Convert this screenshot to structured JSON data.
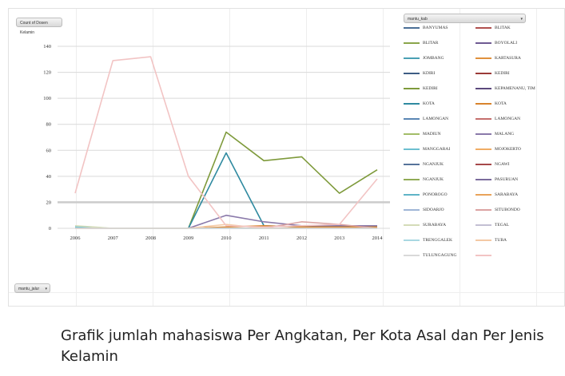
{
  "value_field_label": "Count of Dosen Kelamin",
  "legend_field_label": "mantu_kab",
  "axis_field_label": "mantu_jalur",
  "caption": "Grafik jumlah mahasiswa Per Angkatan, Per Kota Asal dan Per Jenis Kelamin",
  "chart_data": {
    "type": "line",
    "x": [
      "2006",
      "2007",
      "2008",
      "2009",
      "2010",
      "2011",
      "2012",
      "2013",
      "2014"
    ],
    "ylim": [
      0,
      140
    ],
    "yticks": [
      0,
      20,
      40,
      60,
      80,
      100,
      120,
      140
    ],
    "grid": true,
    "legend_position": "right",
    "series": [
      {
        "name": "BANYUMAS",
        "color": "#4a6f96",
        "values": [
          0,
          0,
          0,
          0,
          0,
          0,
          0,
          0,
          0
        ]
      },
      {
        "name": "BLITAK",
        "color": "#b0504e",
        "values": [
          0,
          0,
          0,
          0,
          0,
          0,
          0,
          0,
          0
        ]
      },
      {
        "name": "BLITAR",
        "color": "#8aa54a",
        "values": [
          0,
          0,
          0,
          0,
          0,
          0,
          0,
          0,
          0
        ]
      },
      {
        "name": "BOYOLALI",
        "color": "#6f5a92",
        "values": [
          0,
          0,
          0,
          0,
          0,
          0,
          0,
          0,
          0
        ]
      },
      {
        "name": "JOMBANG",
        "color": "#4aa0b4",
        "values": [
          0,
          0,
          0,
          0,
          0,
          0,
          0,
          0,
          0
        ]
      },
      {
        "name": "KARTASURA",
        "color": "#e0913c",
        "values": [
          0,
          0,
          0,
          0,
          0,
          0,
          0,
          0,
          0
        ]
      },
      {
        "name": "KDIRI",
        "color": "#3d5c84",
        "values": [
          0,
          0,
          0,
          0,
          0,
          0,
          0,
          0,
          0
        ]
      },
      {
        "name": "KEDIRI",
        "color": "#9b3a38",
        "values": [
          0,
          0,
          0,
          0,
          0,
          0,
          0,
          0,
          0
        ]
      },
      {
        "name": "KEDIRI",
        "color": "#7e9a3b",
        "values": [
          0,
          0,
          0,
          0,
          74,
          52,
          55,
          27,
          45
        ]
      },
      {
        "name": "KEPAMENANU, TIM",
        "color": "#5b497c",
        "values": [
          0,
          0,
          0,
          0,
          0,
          0,
          0,
          0,
          0
        ]
      },
      {
        "name": "KOTA",
        "color": "#2f8aa0",
        "values": [
          0,
          0,
          0,
          0,
          58,
          2,
          1,
          1,
          1
        ]
      },
      {
        "name": "KOTA",
        "color": "#d8832c",
        "values": [
          0,
          0,
          0,
          0,
          1,
          2,
          1,
          1,
          1
        ]
      },
      {
        "name": "LAMONGAN",
        "color": "#5a86b4",
        "values": [
          0,
          0,
          0,
          0,
          0,
          0,
          0,
          0,
          0
        ]
      },
      {
        "name": "LAMONGAN",
        "color": "#c56f6d",
        "values": [
          0,
          0,
          0,
          0,
          0,
          0,
          0,
          0,
          0
        ]
      },
      {
        "name": "MADIUN",
        "color": "#a3bd68",
        "values": [
          0,
          0,
          0,
          0,
          0,
          0,
          0,
          0,
          0
        ]
      },
      {
        "name": "MALANG",
        "color": "#8a79aa",
        "values": [
          0,
          0,
          0,
          0,
          10,
          5,
          2,
          2,
          2
        ]
      },
      {
        "name": "MANGGARAI",
        "color": "#6cbfd0",
        "values": [
          1,
          0,
          0,
          0,
          0,
          0,
          0,
          0,
          0
        ]
      },
      {
        "name": "MOJOKERTO",
        "color": "#f0ac64",
        "values": [
          0,
          0,
          0,
          0,
          0,
          0,
          0,
          0,
          0
        ]
      },
      {
        "name": "NGANJUK",
        "color": "#56739a",
        "values": [
          0,
          0,
          0,
          0,
          0,
          0,
          0,
          0,
          0
        ]
      },
      {
        "name": "NGAWI",
        "color": "#a6484a",
        "values": [
          0,
          0,
          0,
          0,
          0,
          0,
          0,
          0,
          0
        ]
      },
      {
        "name": "NGANJUK",
        "color": "#90ab55",
        "values": [
          0,
          0,
          0,
          0,
          0,
          0,
          0,
          0,
          0
        ]
      },
      {
        "name": "PASURUAN",
        "color": "#7b6b9c",
        "values": [
          0,
          0,
          0,
          0,
          0,
          0,
          0,
          0,
          0
        ]
      },
      {
        "name": "PONOROGO",
        "color": "#5fb4c7",
        "values": [
          0,
          0,
          0,
          0,
          0,
          0,
          0,
          0,
          0
        ]
      },
      {
        "name": "SARABAYA",
        "color": "#e9a35a",
        "values": [
          0,
          0,
          0,
          0,
          0,
          0,
          0,
          0,
          0
        ]
      },
      {
        "name": "SIDOARJO",
        "color": "#9fb6d6",
        "values": [
          0,
          0,
          0,
          0,
          0,
          0,
          0,
          0,
          0
        ]
      },
      {
        "name": "SITUBONDO",
        "color": "#dba3a2",
        "values": [
          0,
          0,
          0,
          0,
          0,
          0,
          5,
          3,
          0
        ]
      },
      {
        "name": "SURABAYA",
        "color": "#d4dcb8",
        "values": [
          2,
          0,
          0,
          0,
          0,
          0,
          0,
          0,
          0
        ]
      },
      {
        "name": "TEGAL",
        "color": "#c3bfd3",
        "values": [
          0,
          0,
          0,
          0,
          0,
          0,
          0,
          0,
          0
        ]
      },
      {
        "name": "TRENGGALEK",
        "color": "#a9d8e2",
        "values": [
          0,
          0,
          0,
          0,
          0,
          0,
          0,
          0,
          0
        ]
      },
      {
        "name": "TUBA",
        "color": "#f4c9a4",
        "values": [
          0,
          0,
          0,
          0,
          3,
          0,
          0,
          0,
          0
        ]
      },
      {
        "name": "TULUNGAGUNG",
        "color": "#d9d9d9",
        "values": [
          0,
          0,
          0,
          0,
          0,
          0,
          0,
          0,
          0
        ]
      },
      {
        "name": "",
        "color": "#f2c4c4",
        "values": [
          27,
          129,
          132,
          40,
          2,
          1,
          2,
          3,
          38
        ]
      }
    ]
  }
}
